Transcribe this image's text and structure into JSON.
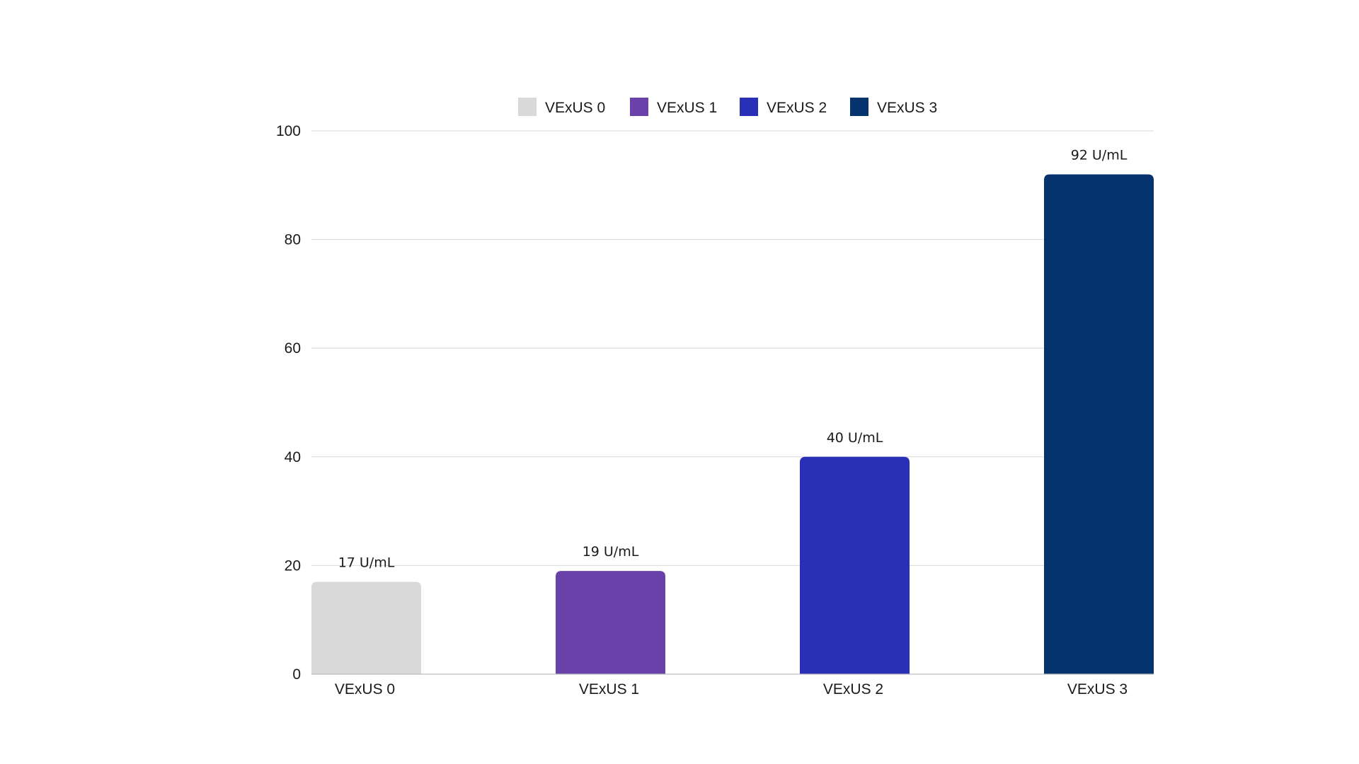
{
  "chart_data": {
    "type": "bar",
    "categories": [
      "VExUS 0",
      "VExUS 1",
      "VExUS 2",
      "VExUS 3"
    ],
    "values": [
      17,
      19,
      40,
      92
    ],
    "data_labels": [
      "17 U/mL",
      "19 U/mL",
      "40 U/mL",
      "92 U/mL"
    ],
    "colors": [
      "#d9d9d9",
      "#6941a8",
      "#2a2fb8",
      "#04336d"
    ],
    "legend": [
      "VExUS 0",
      "VExUS 1",
      "VExUS 2",
      "VExUS 3"
    ],
    "legend_position": "top",
    "title": "",
    "xlabel": "",
    "ylabel": "",
    "ylim": [
      0,
      100
    ],
    "yticks": [
      "0",
      "20",
      "40",
      "60",
      "80",
      "100"
    ],
    "grid": true
  }
}
